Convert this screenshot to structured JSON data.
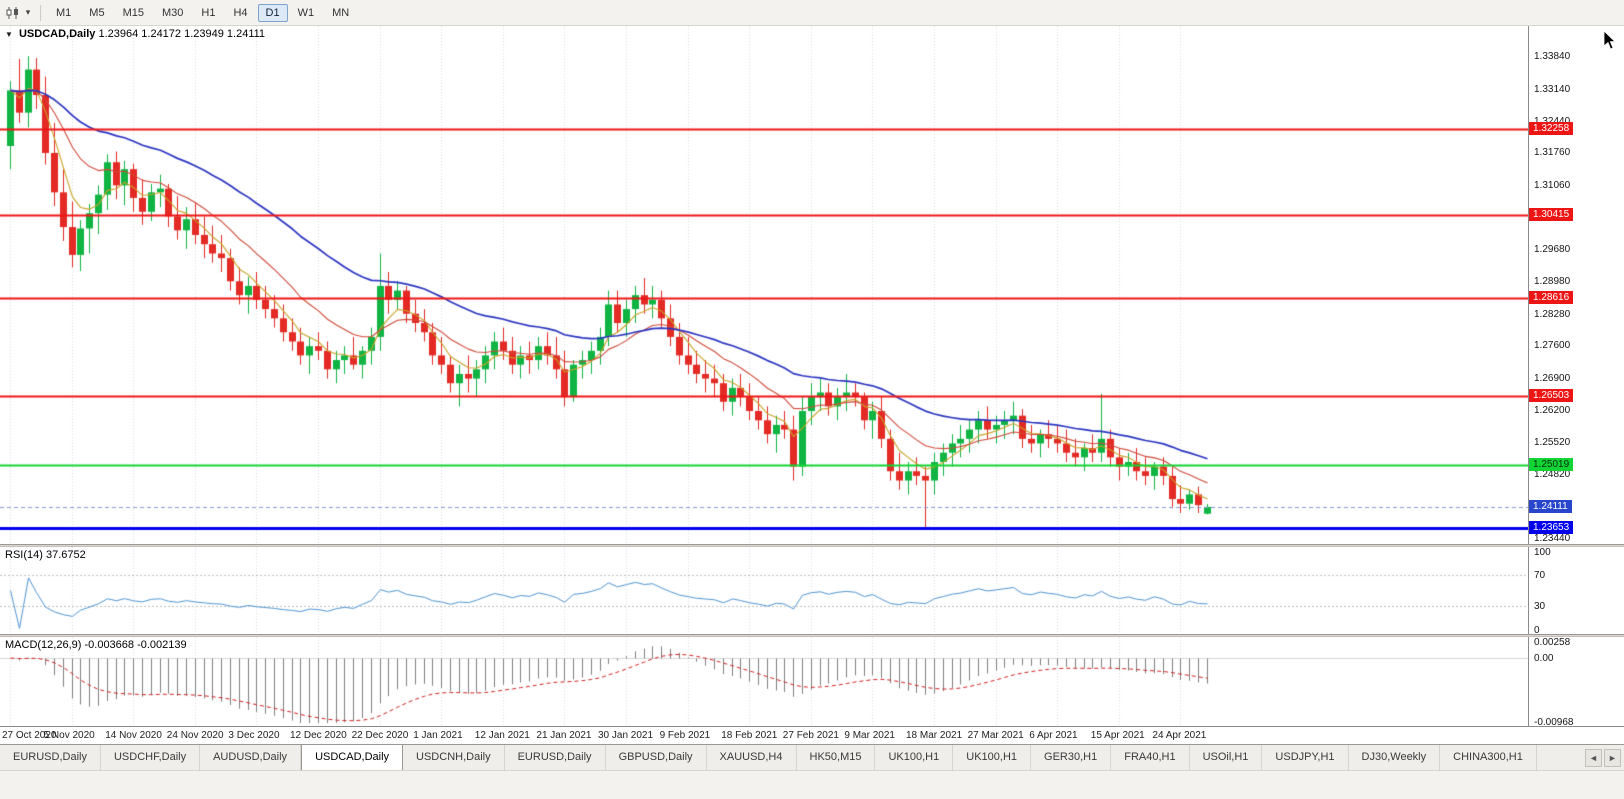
{
  "toolbar": {
    "timeframes": [
      "M1",
      "M5",
      "M15",
      "M30",
      "H1",
      "H4",
      "D1",
      "W1",
      "MN"
    ],
    "active_timeframe": "D1",
    "active_index": 6
  },
  "icons": {
    "collapse": "▼",
    "dropdown": "▾",
    "tab_scroll_left": "◄",
    "tab_scroll_right": "►"
  },
  "main_chart": {
    "header": {
      "symbol": "USDCAD,Daily",
      "ohlc": "1.23964 1.24172 1.23949 1.24111"
    },
    "scale_labels": [
      "1.33840",
      "1.33140",
      "1.32440",
      "1.31760",
      "1.31060",
      "1.30360",
      "1.29680",
      "1.28980",
      "1.28280",
      "1.27600",
      "1.26900",
      "1.26200",
      "1.25520",
      "1.24820",
      "1.24140",
      "1.23440"
    ]
  },
  "indicators": {
    "rsi": {
      "label": "RSI(14)",
      "value": "37.6752",
      "period": 14,
      "scale": [
        "100",
        "70",
        "30",
        "0"
      ],
      "levels": [
        70,
        30
      ],
      "range": [
        0,
        100
      ],
      "line_color": "#4f93d2"
    },
    "macd": {
      "label": "MACD(12,26,9)",
      "values": "-0.003668 -0.002139",
      "fast": 12,
      "slow": 26,
      "signal": 9,
      "scale": [
        "0.00258",
        "0.00",
        "-0.00968"
      ],
      "range": [
        -0.00968,
        0.00258
      ],
      "histogram_color": "#7f7f7f",
      "signal_color": "#d02020"
    }
  },
  "tabs": {
    "items": [
      "EURUSD,Daily",
      "USDCHF,Daily",
      "AUDUSD,Daily",
      "USDCAD,Daily",
      "USDCNH,Daily",
      "EURUSD,Daily",
      "GBPUSD,Daily",
      "XAUUSD,H4",
      "HK50,M15",
      "UK100,H1",
      "UK100,H1",
      "GER30,H1",
      "FRA40,H1",
      "USOil,H1",
      "USDJPY,H1",
      "DJ30,Weekly",
      "CHINA300,H1"
    ],
    "active_index": 3
  },
  "colors": {
    "bull": "#0fb443",
    "bear": "#e32a24",
    "grid": "#dcdcdc",
    "rsi_level": "#c0c0c0"
  },
  "chart_data": {
    "type": "candlestick",
    "symbol": "USDCAD",
    "timeframe": "Daily",
    "title": "USDCAD,Daily",
    "ylim": [
      1.2331,
      1.3449
    ],
    "x_labels": [
      "27 Oct 2020",
      "5 Nov 2020",
      "14 Nov 2020",
      "24 Nov 2020",
      "3 Dec 2020",
      "12 Dec 2020",
      "22 Dec 2020",
      "1 Jan 2021",
      "12 Jan 2021",
      "21 Jan 2021",
      "30 Jan 2021",
      "9 Feb 2021",
      "18 Feb 2021",
      "27 Feb 2021",
      "9 Mar 2021",
      "18 Mar 2021",
      "27 Mar 2021",
      "6 Apr 2021",
      "15 Apr 2021",
      "24 Apr 2021"
    ],
    "candles_per_label": 7,
    "overlays": [
      {
        "name": "ema-fast",
        "period": 5,
        "color": "#c9a227",
        "width": 1.1
      },
      {
        "name": "ema-mid",
        "period": 13,
        "color": "#d04a3a",
        "width": 1.1
      },
      {
        "name": "ema-slow",
        "period": 34,
        "color": "#2b35c0",
        "width": 1.7
      }
    ],
    "hlines": [
      {
        "price": 1.32258,
        "label": "1.32258",
        "color": "#ee1515",
        "line_width": 2,
        "text_color": "#ffffff"
      },
      {
        "price": 1.30415,
        "label": "1.30415",
        "color": "#ee1515",
        "line_width": 2,
        "text_color": "#ffffff"
      },
      {
        "price": 1.28616,
        "label": "1.28616",
        "color": "#ee1515",
        "line_width": 2,
        "text_color": "#ffffff"
      },
      {
        "price": 1.26503,
        "label": "1.26503",
        "color": "#ee1515",
        "line_width": 2,
        "text_color": "#ffffff"
      },
      {
        "price": 1.25019,
        "label": "1.25019",
        "color": "#12d435",
        "line_width": 2,
        "text_color": "#05300d"
      },
      {
        "price": 1.23653,
        "label": "1.23653",
        "color": "#0000ee",
        "line_width": 3,
        "text_color": "#ffffff"
      }
    ],
    "current_price": {
      "price": 1.24111,
      "label": "1.24111",
      "color": "#2746cc"
    },
    "ohlc": [
      [
        1.319,
        1.333,
        1.314,
        1.331
      ],
      [
        1.331,
        1.3378,
        1.324,
        1.3262
      ],
      [
        1.3262,
        1.3384,
        1.323,
        1.3355
      ],
      [
        1.3355,
        1.338,
        1.327,
        1.33
      ],
      [
        1.33,
        1.334,
        1.315,
        1.3175
      ],
      [
        1.3175,
        1.324,
        1.306,
        1.309
      ],
      [
        1.309,
        1.314,
        1.2985,
        1.3015
      ],
      [
        1.3015,
        1.307,
        1.2928,
        1.2955
      ],
      [
        1.2955,
        1.303,
        1.292,
        1.3012
      ],
      [
        1.3012,
        1.3065,
        1.2958,
        1.3045
      ],
      [
        1.3045,
        1.3105,
        1.3,
        1.3085
      ],
      [
        1.3085,
        1.3172,
        1.3052,
        1.3155
      ],
      [
        1.3155,
        1.3178,
        1.3075,
        1.3105
      ],
      [
        1.3105,
        1.3158,
        1.3062,
        1.314
      ],
      [
        1.314,
        1.3152,
        1.3048,
        1.3078
      ],
      [
        1.3078,
        1.3118,
        1.302,
        1.3048
      ],
      [
        1.3048,
        1.3108,
        1.3028,
        1.309
      ],
      [
        1.309,
        1.3128,
        1.3058,
        1.3098
      ],
      [
        1.3098,
        1.3108,
        1.3015,
        1.3038
      ],
      [
        1.3038,
        1.3082,
        1.2988,
        1.3008
      ],
      [
        1.3008,
        1.3058,
        1.2968,
        1.3032
      ],
      [
        1.3032,
        1.3068,
        1.2978,
        1.2998
      ],
      [
        1.2998,
        1.3038,
        1.2948,
        1.2978
      ],
      [
        1.2978,
        1.3018,
        1.2938,
        1.2958
      ],
      [
        1.2958,
        1.2998,
        1.2918,
        1.2948
      ],
      [
        1.2948,
        1.2968,
        1.2878,
        1.2898
      ],
      [
        1.2898,
        1.2928,
        1.2848,
        1.2868
      ],
      [
        1.2868,
        1.2908,
        1.2828,
        1.2888
      ],
      [
        1.2888,
        1.2918,
        1.2838,
        1.2858
      ],
      [
        1.2858,
        1.2888,
        1.2818,
        1.2838
      ],
      [
        1.2838,
        1.2868,
        1.2798,
        1.2818
      ],
      [
        1.2818,
        1.2848,
        1.2768,
        1.2788
      ],
      [
        1.2788,
        1.2818,
        1.2748,
        1.2768
      ],
      [
        1.2768,
        1.2798,
        1.2718,
        1.2738
      ],
      [
        1.2738,
        1.2778,
        1.2698,
        1.2758
      ],
      [
        1.2758,
        1.2788,
        1.2728,
        1.2748
      ],
      [
        1.2748,
        1.2768,
        1.2688,
        1.2708
      ],
      [
        1.2708,
        1.2748,
        1.2678,
        1.2728
      ],
      [
        1.2728,
        1.2758,
        1.2698,
        1.2738
      ],
      [
        1.2738,
        1.2778,
        1.2708,
        1.2718
      ],
      [
        1.2718,
        1.2758,
        1.2688,
        1.2748
      ],
      [
        1.2748,
        1.2798,
        1.2718,
        1.2778
      ],
      [
        1.2778,
        1.2958,
        1.2748,
        1.2888
      ],
      [
        1.2888,
        1.2918,
        1.2828,
        1.2858
      ],
      [
        1.2858,
        1.2898,
        1.2838,
        1.2878
      ],
      [
        1.2878,
        1.2888,
        1.2808,
        1.2828
      ],
      [
        1.2828,
        1.2858,
        1.2788,
        1.2808
      ],
      [
        1.2808,
        1.2838,
        1.2768,
        1.2788
      ],
      [
        1.2788,
        1.2808,
        1.2718,
        1.2738
      ],
      [
        1.2738,
        1.2778,
        1.2698,
        1.2718
      ],
      [
        1.2718,
        1.2738,
        1.2658,
        1.2678
      ],
      [
        1.2678,
        1.2718,
        1.2628,
        1.2698
      ],
      [
        1.2698,
        1.2738,
        1.2658,
        1.2688
      ],
      [
        1.2688,
        1.2728,
        1.2648,
        1.2708
      ],
      [
        1.2708,
        1.2758,
        1.2678,
        1.2738
      ],
      [
        1.2738,
        1.2788,
        1.2708,
        1.2768
      ],
      [
        1.2768,
        1.2798,
        1.2728,
        1.2748
      ],
      [
        1.2748,
        1.2778,
        1.2698,
        1.2718
      ],
      [
        1.2718,
        1.2758,
        1.2688,
        1.2738
      ],
      [
        1.2738,
        1.2768,
        1.2698,
        1.2728
      ],
      [
        1.2728,
        1.2778,
        1.2708,
        1.2758
      ],
      [
        1.2758,
        1.2788,
        1.2718,
        1.2738
      ],
      [
        1.2738,
        1.2778,
        1.2688,
        1.2708
      ],
      [
        1.2708,
        1.2748,
        1.2628,
        1.2648
      ],
      [
        1.2648,
        1.2728,
        1.2638,
        1.2718
      ],
      [
        1.2718,
        1.2748,
        1.2688,
        1.2728
      ],
      [
        1.2728,
        1.2768,
        1.2698,
        1.2748
      ],
      [
        1.2748,
        1.2798,
        1.2718,
        1.2778
      ],
      [
        1.2778,
        1.2878,
        1.2758,
        1.2848
      ],
      [
        1.2848,
        1.2878,
        1.2788,
        1.2808
      ],
      [
        1.2808,
        1.2858,
        1.2778,
        1.2838
      ],
      [
        1.2838,
        1.2888,
        1.2808,
        1.2868
      ],
      [
        1.2868,
        1.2905,
        1.2828,
        1.2848
      ],
      [
        1.2848,
        1.2888,
        1.2818,
        1.2858
      ],
      [
        1.2858,
        1.2878,
        1.2798,
        1.2818
      ],
      [
        1.2818,
        1.2848,
        1.2758,
        1.2778
      ],
      [
        1.2778,
        1.2808,
        1.2718,
        1.2738
      ],
      [
        1.2738,
        1.2778,
        1.2698,
        1.2718
      ],
      [
        1.2718,
        1.2748,
        1.2678,
        1.2698
      ],
      [
        1.2698,
        1.2728,
        1.2658,
        1.2688
      ],
      [
        1.2688,
        1.2718,
        1.2648,
        1.2678
      ],
      [
        1.2678,
        1.2698,
        1.2618,
        1.2638
      ],
      [
        1.2638,
        1.2688,
        1.2608,
        1.2668
      ],
      [
        1.2668,
        1.2698,
        1.2628,
        1.2648
      ],
      [
        1.2648,
        1.2678,
        1.2598,
        1.2618
      ],
      [
        1.2618,
        1.2648,
        1.2578,
        1.2598
      ],
      [
        1.2598,
        1.2628,
        1.2548,
        1.2568
      ],
      [
        1.2568,
        1.2608,
        1.2528,
        1.2588
      ],
      [
        1.2588,
        1.2618,
        1.2558,
        1.2578
      ],
      [
        1.2578,
        1.2608,
        1.2468,
        1.2498
      ],
      [
        1.2498,
        1.2648,
        1.2478,
        1.2618
      ],
      [
        1.2618,
        1.2678,
        1.2588,
        1.2648
      ],
      [
        1.2648,
        1.2688,
        1.2618,
        1.2658
      ],
      [
        1.2658,
        1.2678,
        1.2608,
        1.2628
      ],
      [
        1.2628,
        1.2668,
        1.2598,
        1.2648
      ],
      [
        1.2648,
        1.2698,
        1.2618,
        1.2658
      ],
      [
        1.2658,
        1.2678,
        1.2628,
        1.2648
      ],
      [
        1.2648,
        1.2658,
        1.2578,
        1.2598
      ],
      [
        1.2598,
        1.2638,
        1.2558,
        1.2618
      ],
      [
        1.2618,
        1.2648,
        1.2538,
        1.2558
      ],
      [
        1.2558,
        1.2578,
        1.2468,
        1.2488
      ],
      [
        1.2488,
        1.2528,
        1.2448,
        1.2468
      ],
      [
        1.2468,
        1.2508,
        1.2438,
        1.2488
      ],
      [
        1.2488,
        1.2518,
        1.2458,
        1.2478
      ],
      [
        1.2478,
        1.2498,
        1.2365,
        1.2468
      ],
      [
        1.2468,
        1.2528,
        1.2438,
        1.2508
      ],
      [
        1.2508,
        1.2548,
        1.2478,
        1.2528
      ],
      [
        1.2528,
        1.2568,
        1.2498,
        1.2548
      ],
      [
        1.2548,
        1.2588,
        1.2518,
        1.2558
      ],
      [
        1.2558,
        1.2598,
        1.2528,
        1.2578
      ],
      [
        1.2578,
        1.2618,
        1.2548,
        1.2598
      ],
      [
        1.2598,
        1.2628,
        1.2558,
        1.2578
      ],
      [
        1.2578,
        1.2608,
        1.2548,
        1.2588
      ],
      [
        1.2588,
        1.2618,
        1.2558,
        1.2598
      ],
      [
        1.2598,
        1.2638,
        1.2568,
        1.2608
      ],
      [
        1.2608,
        1.2622,
        1.2538,
        1.2558
      ],
      [
        1.2558,
        1.2588,
        1.2528,
        1.2548
      ],
      [
        1.2548,
        1.2578,
        1.2518,
        1.2568
      ],
      [
        1.2568,
        1.2598,
        1.2538,
        1.2558
      ],
      [
        1.2558,
        1.2588,
        1.2528,
        1.2548
      ],
      [
        1.2548,
        1.2578,
        1.2508,
        1.2528
      ],
      [
        1.2528,
        1.2558,
        1.2498,
        1.2518
      ],
      [
        1.2518,
        1.2548,
        1.2488,
        1.2538
      ],
      [
        1.2538,
        1.2568,
        1.2508,
        1.2528
      ],
      [
        1.2528,
        1.2655,
        1.2508,
        1.2558
      ],
      [
        1.2558,
        1.2578,
        1.2498,
        1.2518
      ],
      [
        1.2518,
        1.2538,
        1.2468,
        1.2498
      ],
      [
        1.2498,
        1.2528,
        1.2478,
        1.2508
      ],
      [
        1.2508,
        1.2538,
        1.2468,
        1.2488
      ],
      [
        1.2488,
        1.2518,
        1.2458,
        1.2478
      ],
      [
        1.2478,
        1.2508,
        1.2448,
        1.2498
      ],
      [
        1.2498,
        1.2518,
        1.2458,
        1.2478
      ],
      [
        1.2478,
        1.2498,
        1.2408,
        1.2428
      ],
      [
        1.2428,
        1.2458,
        1.2398,
        1.2418
      ],
      [
        1.2418,
        1.2448,
        1.2405,
        1.2438
      ],
      [
        1.2438,
        1.2455,
        1.2398,
        1.2415
      ],
      [
        1.23964,
        1.24172,
        1.23949,
        1.24111
      ]
    ]
  }
}
